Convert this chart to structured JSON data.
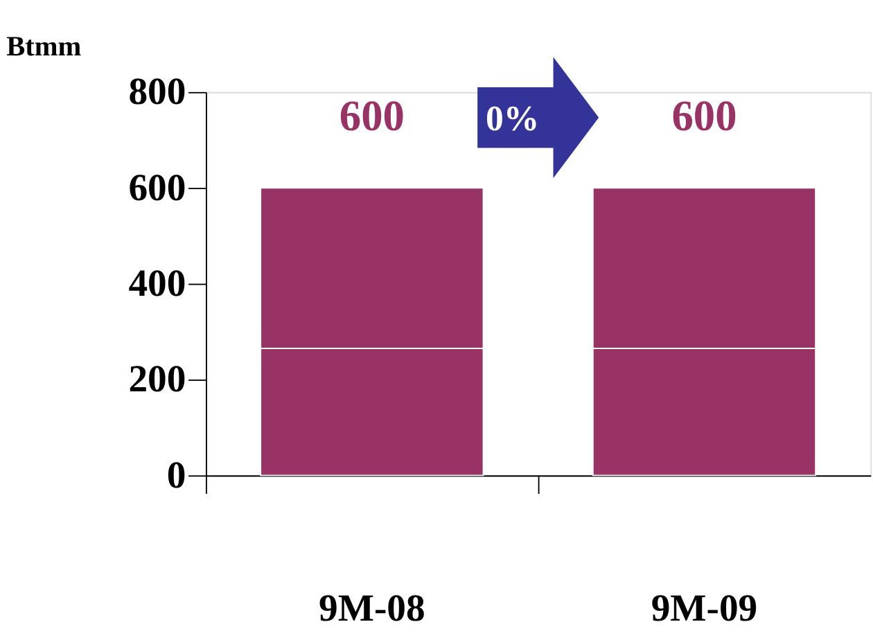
{
  "chart_data": {
    "type": "bar",
    "ylabel": "Btmm",
    "categories": [
      "9M-08",
      "9M-09"
    ],
    "stacked": true,
    "series": [
      {
        "color": "#993366",
        "values": [
          265,
          265
        ]
      },
      {
        "color": "#993366",
        "values": [
          335,
          335
        ]
      }
    ],
    "totals": [
      "600",
      "600"
    ],
    "annotations": [
      "0%"
    ],
    "ylim": [
      0,
      800
    ],
    "yticks": [
      0,
      200,
      400,
      600,
      800
    ],
    "grid": false,
    "legend": false
  }
}
